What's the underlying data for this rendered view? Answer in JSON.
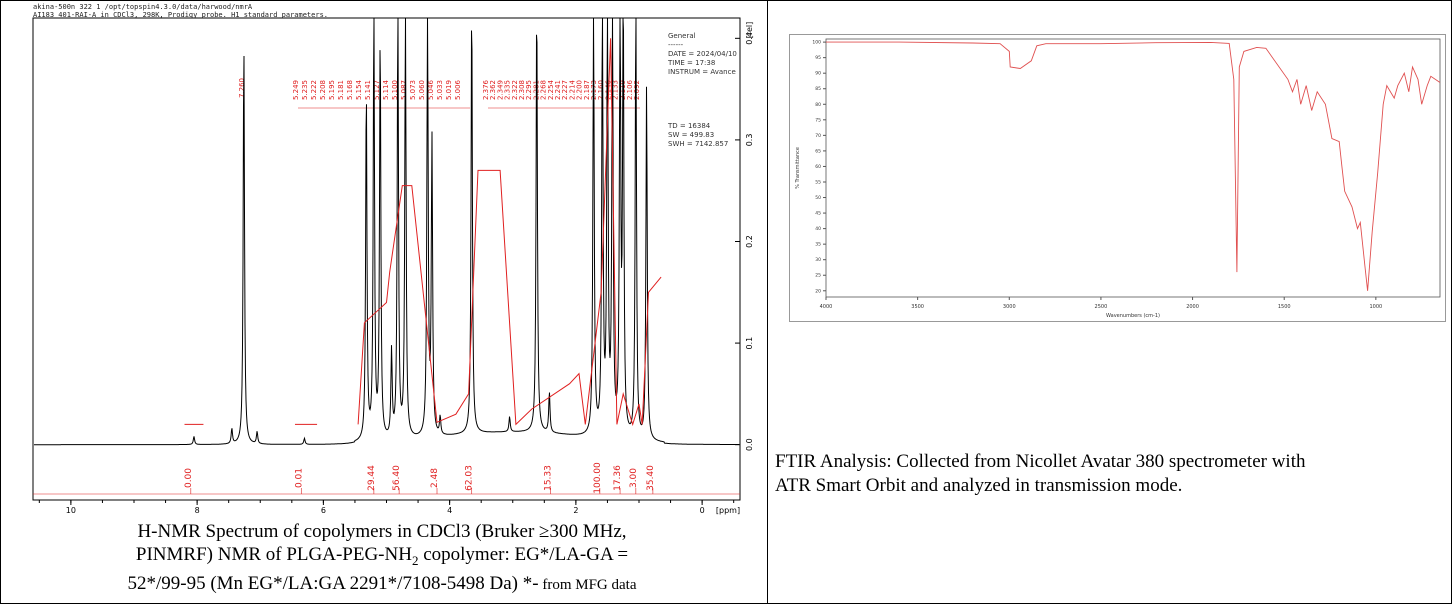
{
  "nmr": {
    "header_line1": "akina-500n  322  1  /opt/topspin4.3.0/data/harwood/nmrA",
    "header_line2": "AI183 401-RAI-A in CDCl3, 298K, Prodigy probe. H1 standard parameters.",
    "y_unit": "[rel]",
    "x_unit": "[ppm]",
    "params": [
      "General",
      "------",
      "DATE = 2024/04/10",
      "TIME = 17:38",
      "INSTRUM = Avance",
      "",
      "",
      "",
      "",
      "",
      "TD = 16384",
      "SW = 499.83",
      "SWH = 7142.857"
    ],
    "peak_label_group1": [
      "5.249",
      "5.235",
      "5.222",
      "5.208",
      "5.195",
      "5.181",
      "5.168",
      "5.154",
      "5.141",
      "5.127",
      "5.114",
      "5.100",
      "5.087",
      "5.073",
      "5.060",
      "5.046",
      "5.033",
      "5.019",
      "5.006"
    ],
    "peak_label_group2": [
      "2.376",
      "2.362",
      "2.349",
      "2.335",
      "2.322",
      "2.308",
      "2.295",
      "2.281",
      "2.268",
      "2.254",
      "2.241",
      "2.227",
      "2.214",
      "2.200",
      "2.187",
      "2.173",
      "2.160",
      "2.146",
      "2.133",
      "2.119",
      "2.106",
      "2.092"
    ],
    "peak_label_single": "7.260",
    "integrals": [
      {
        "ppm": 8.1,
        "label": "0.00"
      },
      {
        "ppm": 6.35,
        "label": "0.01"
      },
      {
        "ppm": 5.2,
        "label": "29.44"
      },
      {
        "ppm": 4.8,
        "label": "56.40"
      },
      {
        "ppm": 4.2,
        "label": "2.48"
      },
      {
        "ppm": 3.65,
        "label": "62.03"
      },
      {
        "ppm": 2.4,
        "label": "15.33"
      },
      {
        "ppm": 1.62,
        "label": "100.00"
      },
      {
        "ppm": 1.3,
        "label": "17.36"
      },
      {
        "ppm": 1.05,
        "label": "3.00"
      },
      {
        "ppm": 0.78,
        "label": "35.40"
      }
    ],
    "caption_line1": "H-NMR Spectrum of copolymers in CDCl3 (Bruker ≥300 MHz,",
    "caption_line2": "PINMRF) NMR of PLGA-PEG-NH",
    "caption_sub": "2",
    "caption_line2b": " copolymer: EG*/LA-GA =",
    "caption_line3": "52*/99-95 (Mn EG*/LA:GA 2291*/7108-5498 Da) *-",
    "caption_small": " from MFG data"
  },
  "ftir": {
    "caption": "FTIR Analysis: Collected from Nicollet Avatar 380 spectrometer with ATR Smart Orbit and analyzed in transmission mode."
  },
  "chart_data": [
    {
      "type": "line",
      "title": "",
      "xlabel": "[ppm]",
      "ylabel": "[rel]",
      "xlim": [
        10.6,
        -0.6
      ],
      "ylim": [
        -0.02,
        0.42
      ],
      "x_ticks": [
        10,
        8,
        6,
        4,
        2,
        0
      ],
      "y_ticks": [
        0.0,
        0.1,
        0.2,
        0.3,
        0.4
      ],
      "peaks": [
        {
          "ppm": 8.05,
          "height": 0.008
        },
        {
          "ppm": 7.45,
          "height": 0.015
        },
        {
          "ppm": 7.26,
          "height": 0.4
        },
        {
          "ppm": 7.05,
          "height": 0.012
        },
        {
          "ppm": 6.3,
          "height": 0.006
        },
        {
          "ppm": 5.32,
          "height": 0.35
        },
        {
          "ppm": 5.2,
          "height": 0.43
        },
        {
          "ppm": 5.1,
          "height": 0.4
        },
        {
          "ppm": 4.92,
          "height": 0.085
        },
        {
          "ppm": 4.82,
          "height": 0.43
        },
        {
          "ppm": 4.7,
          "height": 0.43
        },
        {
          "ppm": 4.35,
          "height": 0.43
        },
        {
          "ppm": 4.28,
          "height": 0.29
        },
        {
          "ppm": 4.15,
          "height": 0.018
        },
        {
          "ppm": 3.65,
          "height": 0.43
        },
        {
          "ppm": 3.05,
          "height": 0.015
        },
        {
          "ppm": 2.62,
          "height": 0.43
        },
        {
          "ppm": 2.42,
          "height": 0.04
        },
        {
          "ppm": 1.72,
          "height": 0.43
        },
        {
          "ppm": 1.58,
          "height": 0.43
        },
        {
          "ppm": 1.5,
          "height": 0.43
        },
        {
          "ppm": 1.42,
          "height": 0.43
        },
        {
          "ppm": 1.3,
          "height": 0.43
        },
        {
          "ppm": 1.25,
          "height": 0.43
        },
        {
          "ppm": 1.05,
          "height": 0.43
        },
        {
          "ppm": 0.88,
          "height": 0.35
        }
      ],
      "integral_curve": [
        {
          "x": 5.45,
          "y": 0.02
        },
        {
          "x": 5.35,
          "y": 0.12
        },
        {
          "x": 5.0,
          "y": 0.14
        },
        {
          "x": 4.95,
          "y": 0.17
        },
        {
          "x": 4.75,
          "y": 0.255
        },
        {
          "x": 4.6,
          "y": 0.255
        },
        {
          "x": 4.2,
          "y": 0.022
        },
        {
          "x": 3.9,
          "y": 0.03
        },
        {
          "x": 3.7,
          "y": 0.05
        },
        {
          "x": 3.55,
          "y": 0.27
        },
        {
          "x": 3.2,
          "y": 0.27
        },
        {
          "x": 2.95,
          "y": 0.02
        },
        {
          "x": 2.7,
          "y": 0.035
        },
        {
          "x": 2.1,
          "y": 0.06
        },
        {
          "x": 1.95,
          "y": 0.07
        },
        {
          "x": 1.85,
          "y": 0.02
        },
        {
          "x": 1.6,
          "y": 0.15
        },
        {
          "x": 1.45,
          "y": 0.4
        },
        {
          "x": 1.35,
          "y": 0.02
        },
        {
          "x": 1.25,
          "y": 0.05
        },
        {
          "x": 1.1,
          "y": 0.02
        },
        {
          "x": 1.0,
          "y": 0.04
        },
        {
          "x": 0.95,
          "y": 0.02
        },
        {
          "x": 0.85,
          "y": 0.15
        },
        {
          "x": 0.65,
          "y": 0.165
        }
      ]
    },
    {
      "type": "line",
      "title": "",
      "xlabel": "Wavenumbers (cm-1)",
      "ylabel": "% Transmittance",
      "xlim": [
        4000,
        650
      ],
      "ylim": [
        18,
        101
      ],
      "x_ticks": [
        4000,
        3500,
        3000,
        2500,
        2000,
        1500,
        1000
      ],
      "y_ticks": [
        100,
        95,
        90,
        85,
        80,
        75,
        70,
        65,
        60,
        55,
        50,
        45,
        40,
        35,
        30,
        25,
        20
      ],
      "series": [
        {
          "color": "#e05050",
          "x": [
            4000,
            3600,
            3200,
            3050,
            3000,
            2995,
            2940,
            2880,
            2850,
            2800,
            2500,
            2200,
            1900,
            1800,
            1775,
            1758,
            1745,
            1720,
            1650,
            1600,
            1480,
            1455,
            1430,
            1410,
            1380,
            1350,
            1320,
            1275,
            1240,
            1200,
            1185,
            1170,
            1130,
            1100,
            1085,
            1060,
            1045,
            1020,
            990,
            960,
            940,
            900,
            880,
            845,
            820,
            800,
            770,
            750,
            720,
            700,
            650
          ],
          "y": [
            100,
            100,
            99.7,
            99.5,
            97,
            92,
            91.5,
            94,
            98.8,
            99.5,
            99.5,
            99.8,
            99.9,
            99.6,
            88,
            26,
            92,
            97,
            98.3,
            98,
            88,
            84,
            88,
            80,
            86,
            78,
            84,
            80,
            69,
            68,
            60,
            52,
            47,
            40,
            42,
            28,
            20,
            39,
            58,
            80,
            86,
            82,
            86,
            90,
            84,
            92,
            88,
            80,
            86,
            89,
            87
          ]
        }
      ]
    }
  ]
}
